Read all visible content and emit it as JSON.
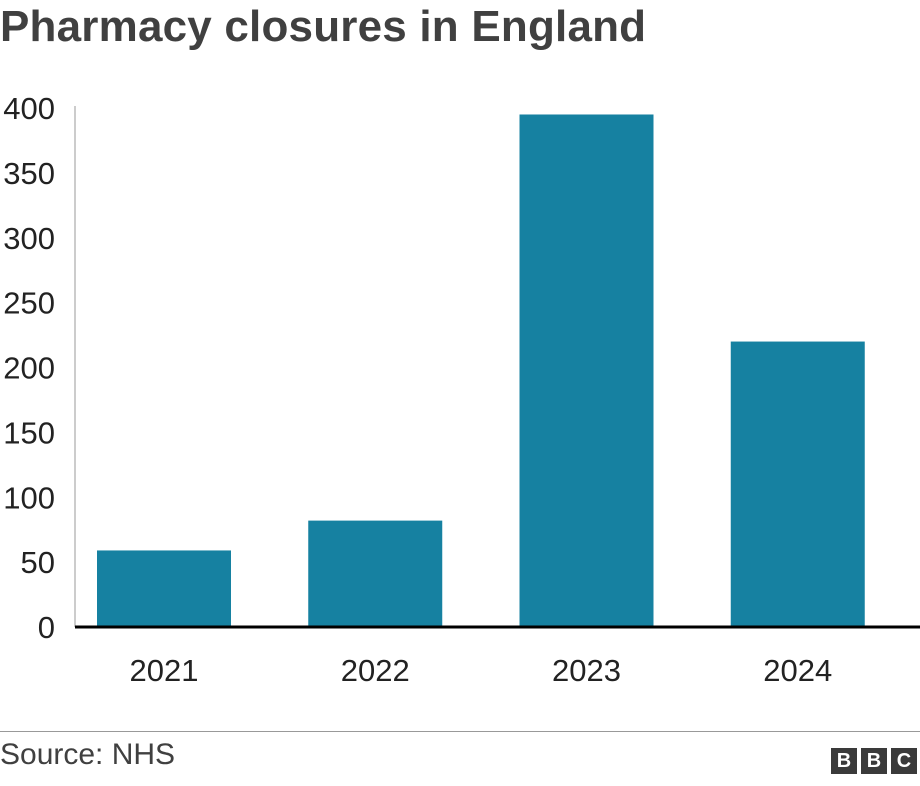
{
  "title": "Pharmacy closures in England",
  "source": "Source: NHS",
  "logo": {
    "letters": [
      "B",
      "B",
      "C"
    ]
  },
  "colors": {
    "bar": "#1681a1",
    "axis": "#000000",
    "grid": "#cccccc",
    "text": "#222222",
    "title": "#404040"
  },
  "chart_data": {
    "type": "bar",
    "title": "Pharmacy closures in England",
    "xlabel": "",
    "ylabel": "",
    "categories": [
      "2021",
      "2022",
      "2023",
      "2024"
    ],
    "values": [
      59,
      82,
      395,
      220
    ],
    "ylim": [
      0,
      400
    ],
    "yticks": [
      0,
      50,
      100,
      150,
      200,
      250,
      300,
      350,
      400
    ],
    "grid": false,
    "legend": "none"
  }
}
